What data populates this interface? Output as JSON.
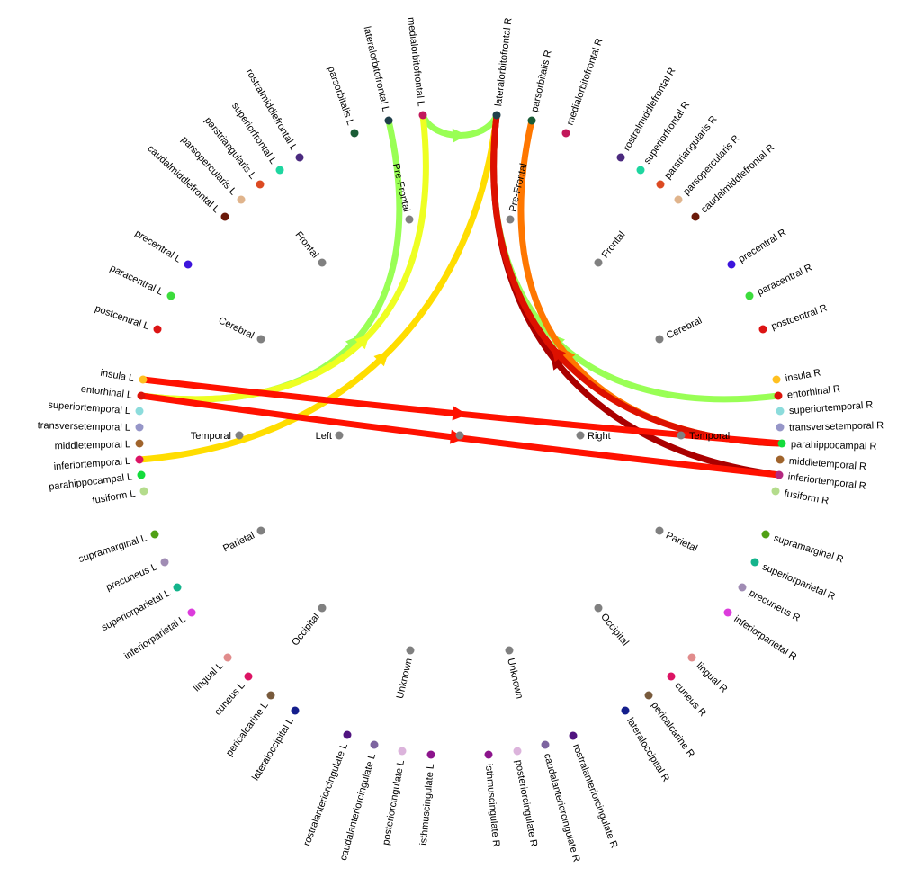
{
  "diagram": {
    "center_label": "",
    "hemispheres": [
      {
        "id": "left",
        "label": "Left",
        "color": "#808080"
      },
      {
        "id": "right",
        "label": "Right",
        "color": "#808080"
      }
    ],
    "lobes": [
      {
        "id": "prefrontal_l",
        "label": "Pre-Frontal",
        "hemi": "left",
        "color": "#808080"
      },
      {
        "id": "frontal_l",
        "label": "Frontal",
        "hemi": "left",
        "color": "#808080"
      },
      {
        "id": "cerebral_l",
        "label": "Cerebral",
        "hemi": "left",
        "color": "#808080"
      },
      {
        "id": "temporal_l",
        "label": "Temporal",
        "hemi": "left",
        "color": "#808080"
      },
      {
        "id": "parietal_l",
        "label": "Parietal",
        "hemi": "left",
        "color": "#808080"
      },
      {
        "id": "occipital_l",
        "label": "Occipital",
        "hemi": "left",
        "color": "#808080"
      },
      {
        "id": "unknown_l",
        "label": "Unknown",
        "hemi": "left",
        "color": "#808080"
      },
      {
        "id": "prefrontal_r",
        "label": "Pre-Frontal",
        "hemi": "right",
        "color": "#808080"
      },
      {
        "id": "frontal_r",
        "label": "Frontal",
        "hemi": "right",
        "color": "#808080"
      },
      {
        "id": "cerebral_r",
        "label": "Cerebral",
        "hemi": "right",
        "color": "#808080"
      },
      {
        "id": "temporal_r",
        "label": "Temporal",
        "hemi": "right",
        "color": "#808080"
      },
      {
        "id": "parietal_r",
        "label": "Parietal",
        "hemi": "right",
        "color": "#808080"
      },
      {
        "id": "occipital_r",
        "label": "Occipital",
        "hemi": "right",
        "color": "#808080"
      },
      {
        "id": "unknown_r",
        "label": "Unknown",
        "hemi": "right",
        "color": "#808080"
      }
    ],
    "regions": [
      {
        "id": "parsorbitalis_l",
        "label": "parsorbitalis L",
        "color": "#1a5c36"
      },
      {
        "id": "lateralorbitofrontal_l",
        "label": "lateralorbitofrontal L",
        "color": "#1f3f4a"
      },
      {
        "id": "medialorbitofrontal_l",
        "label": "medialorbitofrontal L",
        "color": "#c2185b"
      },
      {
        "id": "rostralmiddlefrontal_l",
        "label": "rostralmiddlefrontal L",
        "color": "#4b2a7f"
      },
      {
        "id": "superiorfrontal_l",
        "label": "superiorfrontal L",
        "color": "#1ed6a0"
      },
      {
        "id": "parstriangularis_l",
        "label": "parstriangularis L",
        "color": "#dc4a22"
      },
      {
        "id": "parsopercularis_l",
        "label": "parsopercularis L",
        "color": "#e0b48c"
      },
      {
        "id": "caudalmiddlefrontal_l",
        "label": "caudalmiddlefrontal L",
        "color": "#6b1a0a"
      },
      {
        "id": "precentral_l",
        "label": "precentral L",
        "color": "#3c14dc"
      },
      {
        "id": "paracentral_l",
        "label": "paracentral L",
        "color": "#3cdc3c"
      },
      {
        "id": "postcentral_l",
        "label": "postcentral L",
        "color": "#dc1414"
      },
      {
        "id": "insula_l",
        "label": "insula L",
        "color": "#ffc020"
      },
      {
        "id": "entorhinal_l",
        "label": "entorhinal L",
        "color": "#dc140a"
      },
      {
        "id": "superiortemporal_l",
        "label": "superiortemporal L",
        "color": "#8cdcdc"
      },
      {
        "id": "transversetemporal_l",
        "label": "transversetemporal L",
        "color": "#9696c8"
      },
      {
        "id": "middletemporal_l",
        "label": "middletemporal L",
        "color": "#a0642c"
      },
      {
        "id": "inferiortemporal_l",
        "label": "inferiortemporal L",
        "color": "#dc1464"
      },
      {
        "id": "parahippocampal_l",
        "label": "parahippocampal L",
        "color": "#14dc3c"
      },
      {
        "id": "fusiform_l",
        "label": "fusiform L",
        "color": "#b4dc8c"
      },
      {
        "id": "supramarginal_l",
        "label": "supramarginal L",
        "color": "#50a014"
      },
      {
        "id": "precuneus_l",
        "label": "precuneus L",
        "color": "#a08cb4"
      },
      {
        "id": "superiorparietal_l",
        "label": "superiorparietal L",
        "color": "#14b48c"
      },
      {
        "id": "inferiorparietal_l",
        "label": "inferiorparietal L",
        "color": "#dc3cdc"
      },
      {
        "id": "lingual_l",
        "label": "lingual L",
        "color": "#e18c8c"
      },
      {
        "id": "cuneus_l",
        "label": "cuneus L",
        "color": "#dc1464"
      },
      {
        "id": "pericalcarine_l",
        "label": "pericalcarine L",
        "color": "#785a3c"
      },
      {
        "id": "lateraloccipital_l",
        "label": "lateraloccipital L",
        "color": "#141e8c"
      },
      {
        "id": "rostralanteriorcingulate_l",
        "label": "rostralanteriorcingulate L",
        "color": "#501480"
      },
      {
        "id": "caudalanteriorcingulate_l",
        "label": "caudalanteriorcingulate L",
        "color": "#7d64a0"
      },
      {
        "id": "posteriorcingulate_l",
        "label": "posteriorcingulate L",
        "color": "#dcb4dc"
      },
      {
        "id": "isthmuscingulate_l",
        "label": "isthmuscingulate L",
        "color": "#8c148c"
      },
      {
        "id": "isthmuscingulate_r",
        "label": "isthmuscingulate R",
        "color": "#8c148c"
      },
      {
        "id": "posteriorcingulate_r",
        "label": "posteriorcingulate R",
        "color": "#dcb4dc"
      },
      {
        "id": "caudalanteriorcingulate_r",
        "label": "caudalanteriorcingulate R",
        "color": "#7d64a0"
      },
      {
        "id": "rostralanteriorcingulate_r",
        "label": "rostralanteriorcingulate R",
        "color": "#501480"
      },
      {
        "id": "lateraloccipital_r",
        "label": "lateraloccipital R",
        "color": "#141e8c"
      },
      {
        "id": "pericalcarine_r",
        "label": "pericalcarine R",
        "color": "#785a3c"
      },
      {
        "id": "cuneus_r",
        "label": "cuneus R",
        "color": "#dc1464"
      },
      {
        "id": "lingual_r",
        "label": "lingual R",
        "color": "#e18c8c"
      },
      {
        "id": "inferiorparietal_r",
        "label": "inferiorparietal R",
        "color": "#dc3cdc"
      },
      {
        "id": "precuneus_r",
        "label": "precuneus R",
        "color": "#a08cb4"
      },
      {
        "id": "superiorparietal_r",
        "label": "superiorparietal R",
        "color": "#14b48c"
      },
      {
        "id": "supramarginal_r",
        "label": "supramarginal R",
        "color": "#50a014"
      },
      {
        "id": "fusiform_r",
        "label": "fusiform R",
        "color": "#b4dc8c"
      },
      {
        "id": "inferiortemporal_r",
        "label": "inferiortemporal R",
        "color": "#b4287f"
      },
      {
        "id": "middletemporal_r",
        "label": "middletemporal R",
        "color": "#a0642c"
      },
      {
        "id": "parahippocampal_r",
        "label": "parahippocampal R",
        "color": "#14dc3c"
      },
      {
        "id": "transversetemporal_r",
        "label": "transversetemporal R",
        "color": "#9696c8"
      },
      {
        "id": "superiortemporal_r",
        "label": "superiortemporal R",
        "color": "#8cdcdc"
      },
      {
        "id": "entorhinal_r",
        "label": "entorhinal R",
        "color": "#dc140a"
      },
      {
        "id": "insula_r",
        "label": "insula R",
        "color": "#ffc020"
      },
      {
        "id": "postcentral_r",
        "label": "postcentral R",
        "color": "#dc1414"
      },
      {
        "id": "paracentral_r",
        "label": "paracentral R",
        "color": "#3cdc3c"
      },
      {
        "id": "precentral_r",
        "label": "precentral R",
        "color": "#3c14dc"
      },
      {
        "id": "caudalmiddlefrontal_r",
        "label": "caudalmiddlefrontal R",
        "color": "#6b1a0a"
      },
      {
        "id": "parsopercularis_r",
        "label": "parsopercularis R",
        "color": "#e0b48c"
      },
      {
        "id": "parstriangularis_r",
        "label": "parstriangularis R",
        "color": "#dc4a22"
      },
      {
        "id": "superiorfrontal_r",
        "label": "superiorfrontal R",
        "color": "#1ed6a0"
      },
      {
        "id": "rostralmiddlefrontal_r",
        "label": "rostralmiddlefrontal R",
        "color": "#4b2a7f"
      },
      {
        "id": "medialorbitofrontal_r",
        "label": "medialorbitofrontal R",
        "color": "#c2185b"
      },
      {
        "id": "parsorbitalis_r",
        "label": "parsorbitalis R",
        "color": "#1a5c36"
      },
      {
        "id": "lateralorbitofrontal_r",
        "label": "lateralorbitofrontal R",
        "color": "#1f3f4a"
      }
    ],
    "edges": [
      {
        "from": "entorhinal_l",
        "to": "lateralorbitofrontal_l",
        "color": "#99ff55"
      },
      {
        "from": "medialorbitofrontal_l",
        "to": "lateralorbitofrontal_r",
        "color": "#99ff55"
      },
      {
        "from": "entorhinal_r",
        "to": "lateralorbitofrontal_r",
        "color": "#99ff55"
      },
      {
        "from": "entorhinal_l",
        "to": "medialorbitofrontal_l",
        "color": "#eeff22"
      },
      {
        "from": "inferiortemporal_l",
        "to": "lateralorbitofrontal_r",
        "color": "#ffdd00"
      },
      {
        "from": "parahippocampal_r",
        "to": "parsorbitalis_r",
        "color": "#ff7700"
      },
      {
        "from": "inferiortemporal_r",
        "to": "lateralorbitofrontal_r",
        "color": "#aa0000"
      },
      {
        "from": "parahippocampal_r",
        "to": "lateralorbitofrontal_r",
        "color": "#dd1100"
      },
      {
        "from": "insula_l",
        "to": "parahippocampal_r",
        "color": "#ff1100"
      },
      {
        "from": "entorhinal_l",
        "to": "inferiortemporal_r",
        "color": "#ff1100"
      }
    ]
  }
}
